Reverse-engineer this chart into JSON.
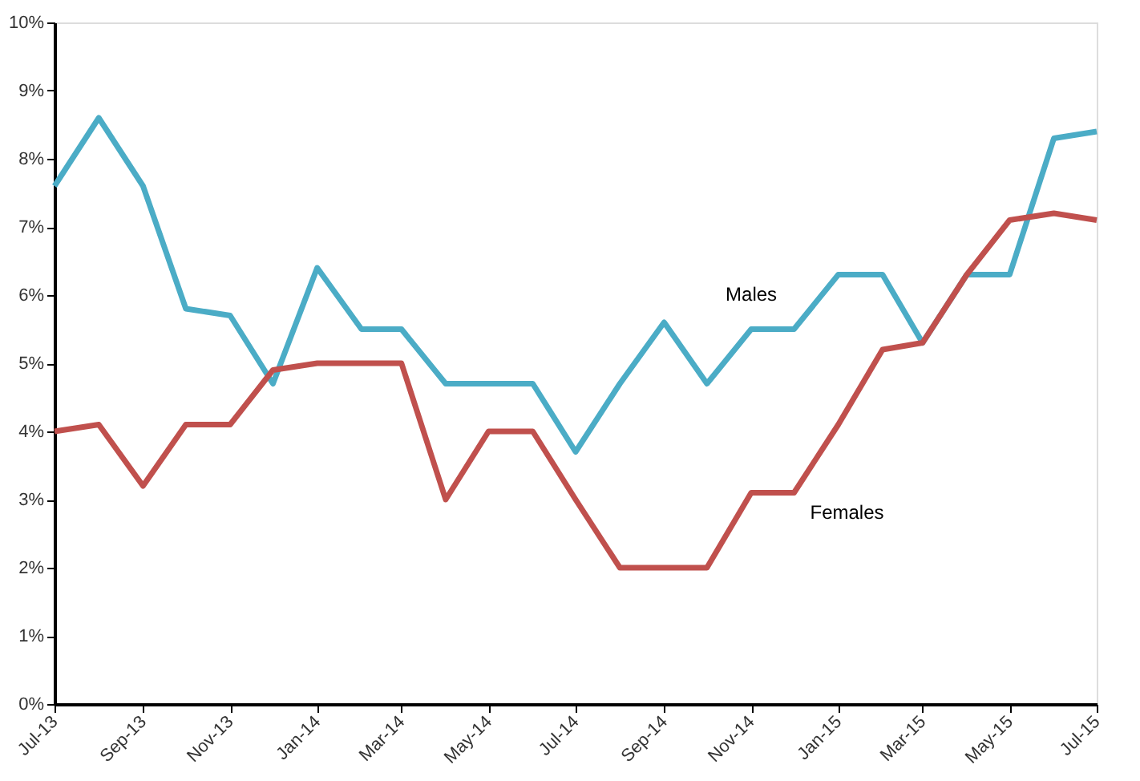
{
  "chart_data": {
    "type": "line",
    "x": [
      "2013-07",
      "2013-08",
      "2013-09",
      "2013-10",
      "2013-11",
      "2013-12",
      "2014-01",
      "2014-02",
      "2014-03",
      "2014-04",
      "2014-05",
      "2014-06",
      "2014-07",
      "2014-08",
      "2014-09",
      "2014-10",
      "2014-11",
      "2014-12",
      "2015-01",
      "2015-02",
      "2015-03",
      "2015-04",
      "2015-05",
      "2015-06",
      "2015-07"
    ],
    "series": [
      {
        "name": "Males",
        "color": "#4bacc6",
        "values": [
          7.6,
          8.6,
          7.6,
          5.8,
          5.7,
          4.7,
          6.4,
          5.5,
          5.5,
          4.7,
          4.7,
          4.7,
          3.7,
          4.7,
          5.6,
          4.7,
          5.5,
          5.5,
          6.3,
          6.3,
          5.3,
          6.3,
          6.3,
          8.3,
          8.4
        ]
      },
      {
        "name": "Females",
        "color": "#c0504d",
        "values": [
          4.0,
          4.1,
          3.2,
          4.1,
          4.1,
          4.9,
          5.0,
          5.0,
          5.0,
          3.0,
          4.0,
          4.0,
          3.0,
          2.0,
          2.0,
          2.0,
          3.1,
          3.1,
          4.1,
          5.2,
          5.3,
          6.3,
          7.1,
          7.2,
          7.1
        ]
      }
    ],
    "xlim": [
      "2013-07",
      "2015-07"
    ],
    "xticks": [
      {
        "value": "2013-07",
        "label": "Jul-13"
      },
      {
        "value": "2013-09",
        "label": "Sep-13"
      },
      {
        "value": "2013-11",
        "label": "Nov-13"
      },
      {
        "value": "2014-01",
        "label": "Jan-14"
      },
      {
        "value": "2014-03",
        "label": "Mar-14"
      },
      {
        "value": "2014-05",
        "label": "May-14"
      },
      {
        "value": "2014-07",
        "label": "Jul-14"
      },
      {
        "value": "2014-09",
        "label": "Sep-14"
      },
      {
        "value": "2014-11",
        "label": "Nov-14"
      },
      {
        "value": "2015-01",
        "label": "Jan-15"
      },
      {
        "value": "2015-03",
        "label": "Mar-15"
      },
      {
        "value": "2015-05",
        "label": "May-15"
      },
      {
        "value": "2015-07",
        "label": "Jul-15"
      }
    ],
    "ylim": [
      0,
      10
    ],
    "yticks": [
      {
        "value": 0,
        "label": "0%"
      },
      {
        "value": 1,
        "label": "1%"
      },
      {
        "value": 2,
        "label": "2%"
      },
      {
        "value": 3,
        "label": "3%"
      },
      {
        "value": 4,
        "label": "4%"
      },
      {
        "value": 5,
        "label": "5%"
      },
      {
        "value": 6,
        "label": "6%"
      },
      {
        "value": 7,
        "label": "7%"
      },
      {
        "value": 8,
        "label": "8%"
      },
      {
        "value": 9,
        "label": "9%"
      },
      {
        "value": 10,
        "label": "10%"
      }
    ],
    "grid": false,
    "legend": false,
    "marker": "none",
    "line_style": "solid"
  }
}
